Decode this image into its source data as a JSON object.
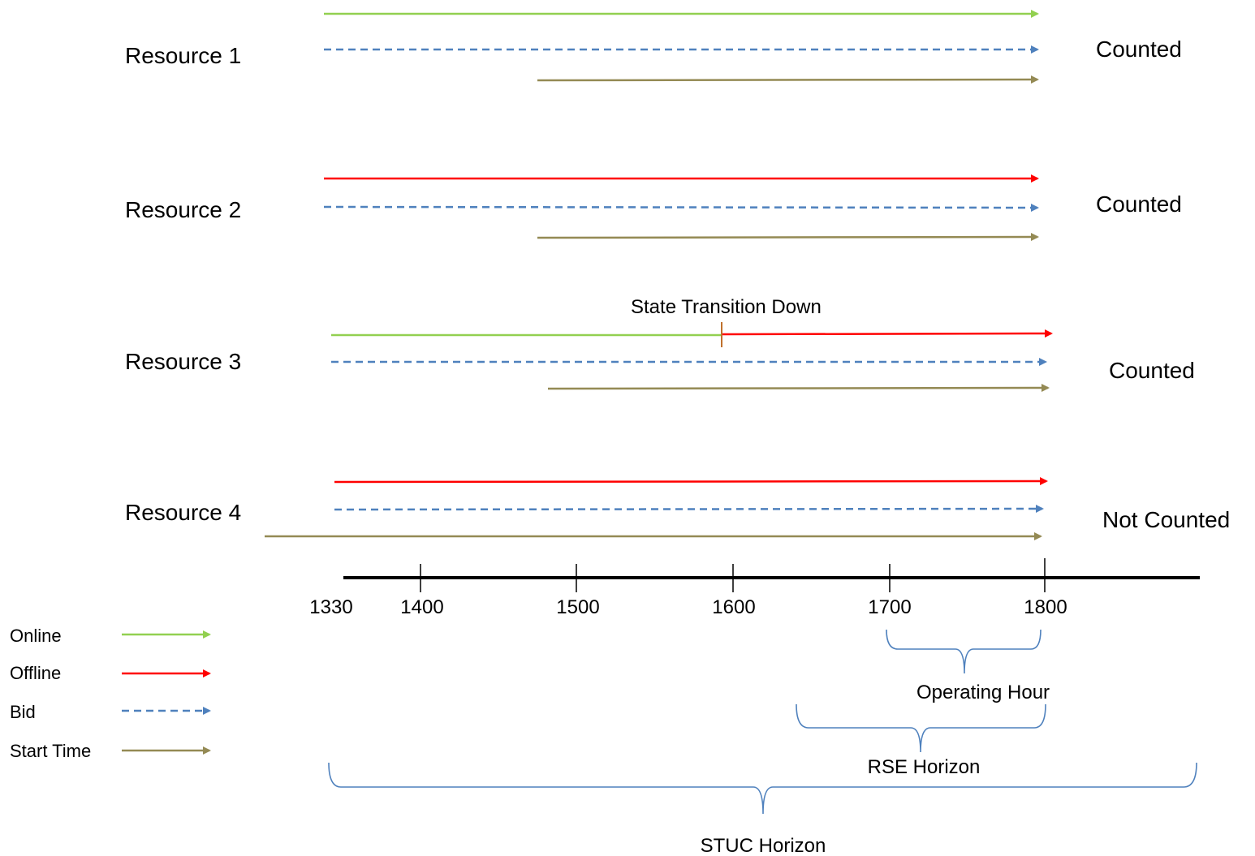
{
  "resources": [
    {
      "label": "Resource 1",
      "status": "Counted"
    },
    {
      "label": "Resource 2",
      "status": "Counted"
    },
    {
      "label": "Resource 3",
      "status": "Counted",
      "annotation": "State Transition Down"
    },
    {
      "label": "Resource 4",
      "status": "Not Counted"
    }
  ],
  "axis": {
    "ticks": [
      "1330",
      "1400",
      "1500",
      "1600",
      "1700",
      "1800"
    ]
  },
  "legend": [
    {
      "label": "Online",
      "color": "#92d050",
      "style": "solid"
    },
    {
      "label": "Offline",
      "color": "#ff0000",
      "style": "solid"
    },
    {
      "label": "Bid",
      "color": "#4f81bd",
      "style": "dashed"
    },
    {
      "label": "Start Time",
      "color": "#948a54",
      "style": "solid"
    }
  ],
  "horizons": [
    {
      "label": "Operating Hour"
    },
    {
      "label": "RSE Horizon"
    },
    {
      "label": "STUC Horizon"
    }
  ],
  "colors": {
    "online": "#92d050",
    "offline": "#ff0000",
    "bid": "#4f81bd",
    "start_time": "#948a54",
    "brace": "#4f81bd",
    "axis": "#000000",
    "transition_marker": "#c0712d"
  }
}
